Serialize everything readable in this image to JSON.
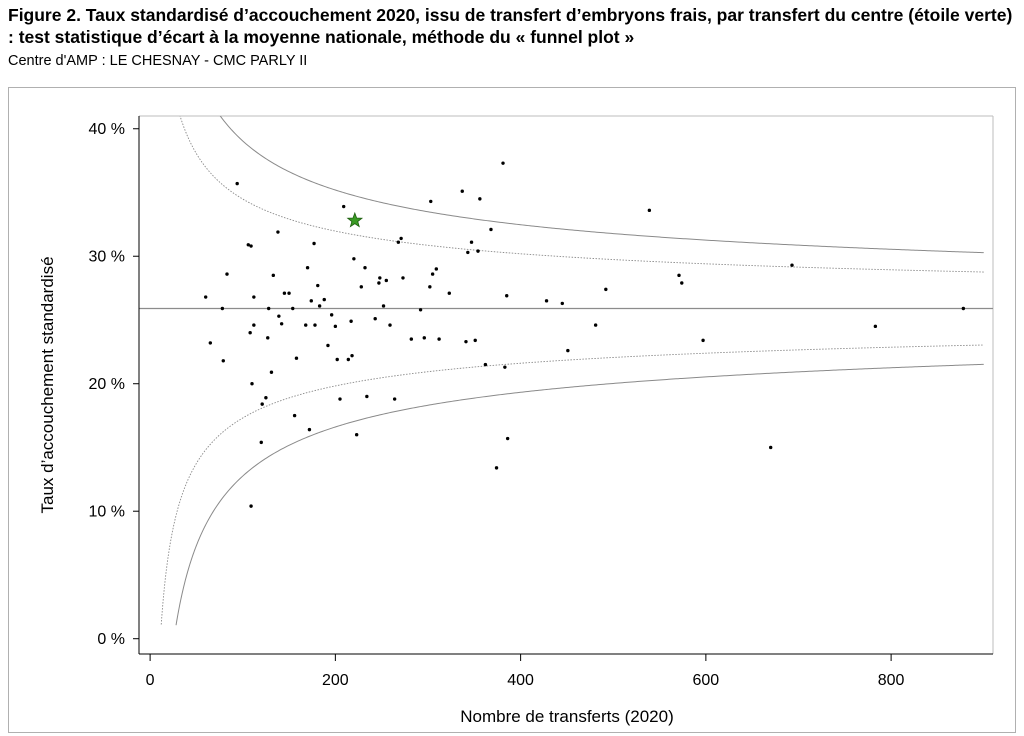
{
  "figure": {
    "title": "Figure 2. Taux standardisé d’accouchement 2020, issu de transfert d’embryons frais, par transfert du centre (étoile verte) : test statistique d’écart à la moyenne nationale, méthode du « funnel plot »",
    "subtitle": "Centre d'AMP : LE CHESNAY - CMC PARLY II"
  },
  "chart_data": {
    "type": "scatter",
    "xlabel": "Nombre de transferts (2020)",
    "ylabel": "Taux d’accouchement standardisé",
    "xlim": [
      -12,
      910
    ],
    "ylim": [
      -1.2,
      41
    ],
    "x_ticks": [
      0,
      200,
      400,
      600,
      800
    ],
    "x_tick_labels": [
      "0",
      "200",
      "400",
      "600",
      "800"
    ],
    "y_ticks": [
      0,
      10,
      20,
      30,
      40
    ],
    "y_tick_labels": [
      "0 %",
      "10 %",
      "20 %",
      "30 %",
      "40 %"
    ],
    "grid": false,
    "national_mean": 25.9,
    "funnel_limits": [
      {
        "style": "solid",
        "z": 3.0
      },
      {
        "style": "dotted",
        "z": 1.96
      }
    ],
    "highlight": {
      "x": 221,
      "y": 32.8,
      "color": "#3a9a24",
      "marker": "star"
    },
    "points": [
      [
        60,
        26.8
      ],
      [
        65,
        23.2
      ],
      [
        78,
        25.9
      ],
      [
        79,
        21.8
      ],
      [
        83,
        28.6
      ],
      [
        94,
        35.7
      ],
      [
        106,
        30.9
      ],
      [
        108,
        24
      ],
      [
        109,
        30.8
      ],
      [
        109,
        10.4
      ],
      [
        110,
        20
      ],
      [
        112,
        26.8
      ],
      [
        112,
        24.6
      ],
      [
        120,
        15.4
      ],
      [
        121,
        18.4
      ],
      [
        125,
        18.9
      ],
      [
        127,
        23.6
      ],
      [
        128,
        25.9
      ],
      [
        131,
        20.9
      ],
      [
        133,
        28.5
      ],
      [
        138,
        31.9
      ],
      [
        139,
        25.3
      ],
      [
        142,
        24.7
      ],
      [
        145,
        27.1
      ],
      [
        150,
        27.1
      ],
      [
        154,
        25.9
      ],
      [
        156,
        17.5
      ],
      [
        158,
        22
      ],
      [
        168,
        24.6
      ],
      [
        170,
        29.1
      ],
      [
        172,
        16.4
      ],
      [
        174,
        26.5
      ],
      [
        177,
        31
      ],
      [
        178,
        24.6
      ],
      [
        181,
        27.7
      ],
      [
        183,
        26.1
      ],
      [
        188,
        26.6
      ],
      [
        192,
        23
      ],
      [
        196,
        25.4
      ],
      [
        200,
        24.5
      ],
      [
        202,
        21.9
      ],
      [
        205,
        18.8
      ],
      [
        209,
        33.9
      ],
      [
        214,
        21.9
      ],
      [
        217,
        24.9
      ],
      [
        218,
        22.2
      ],
      [
        220,
        29.8
      ],
      [
        223,
        16
      ],
      [
        228,
        27.6
      ],
      [
        232,
        29.1
      ],
      [
        234,
        19
      ],
      [
        243,
        25.1
      ],
      [
        247,
        27.9
      ],
      [
        248,
        28.3
      ],
      [
        252,
        26.1
      ],
      [
        255,
        28.1
      ],
      [
        259,
        24.6
      ],
      [
        264,
        18.8
      ],
      [
        268,
        31.1
      ],
      [
        271,
        31.4
      ],
      [
        273,
        28.3
      ],
      [
        282,
        23.5
      ],
      [
        292,
        25.8
      ],
      [
        296,
        23.6
      ],
      [
        302,
        27.6
      ],
      [
        303,
        34.3
      ],
      [
        305,
        28.6
      ],
      [
        309,
        29
      ],
      [
        312,
        23.5
      ],
      [
        323,
        27.1
      ],
      [
        337,
        35.1
      ],
      [
        341,
        23.3
      ],
      [
        343,
        30.3
      ],
      [
        347,
        31.1
      ],
      [
        351,
        23.4
      ],
      [
        354,
        30.4
      ],
      [
        356,
        34.5
      ],
      [
        362,
        21.5
      ],
      [
        368,
        32.1
      ],
      [
        374,
        13.4
      ],
      [
        381,
        37.3
      ],
      [
        383,
        21.3
      ],
      [
        385,
        26.9
      ],
      [
        386,
        15.7
      ],
      [
        428,
        26.5
      ],
      [
        445,
        26.3
      ],
      [
        451,
        22.6
      ],
      [
        481,
        24.6
      ],
      [
        492,
        27.4
      ],
      [
        539,
        33.6
      ],
      [
        571,
        28.5
      ],
      [
        574,
        27.9
      ],
      [
        597,
        23.4
      ],
      [
        670,
        15
      ],
      [
        693,
        29.3
      ],
      [
        783,
        24.5
      ],
      [
        878,
        25.9
      ]
    ]
  }
}
